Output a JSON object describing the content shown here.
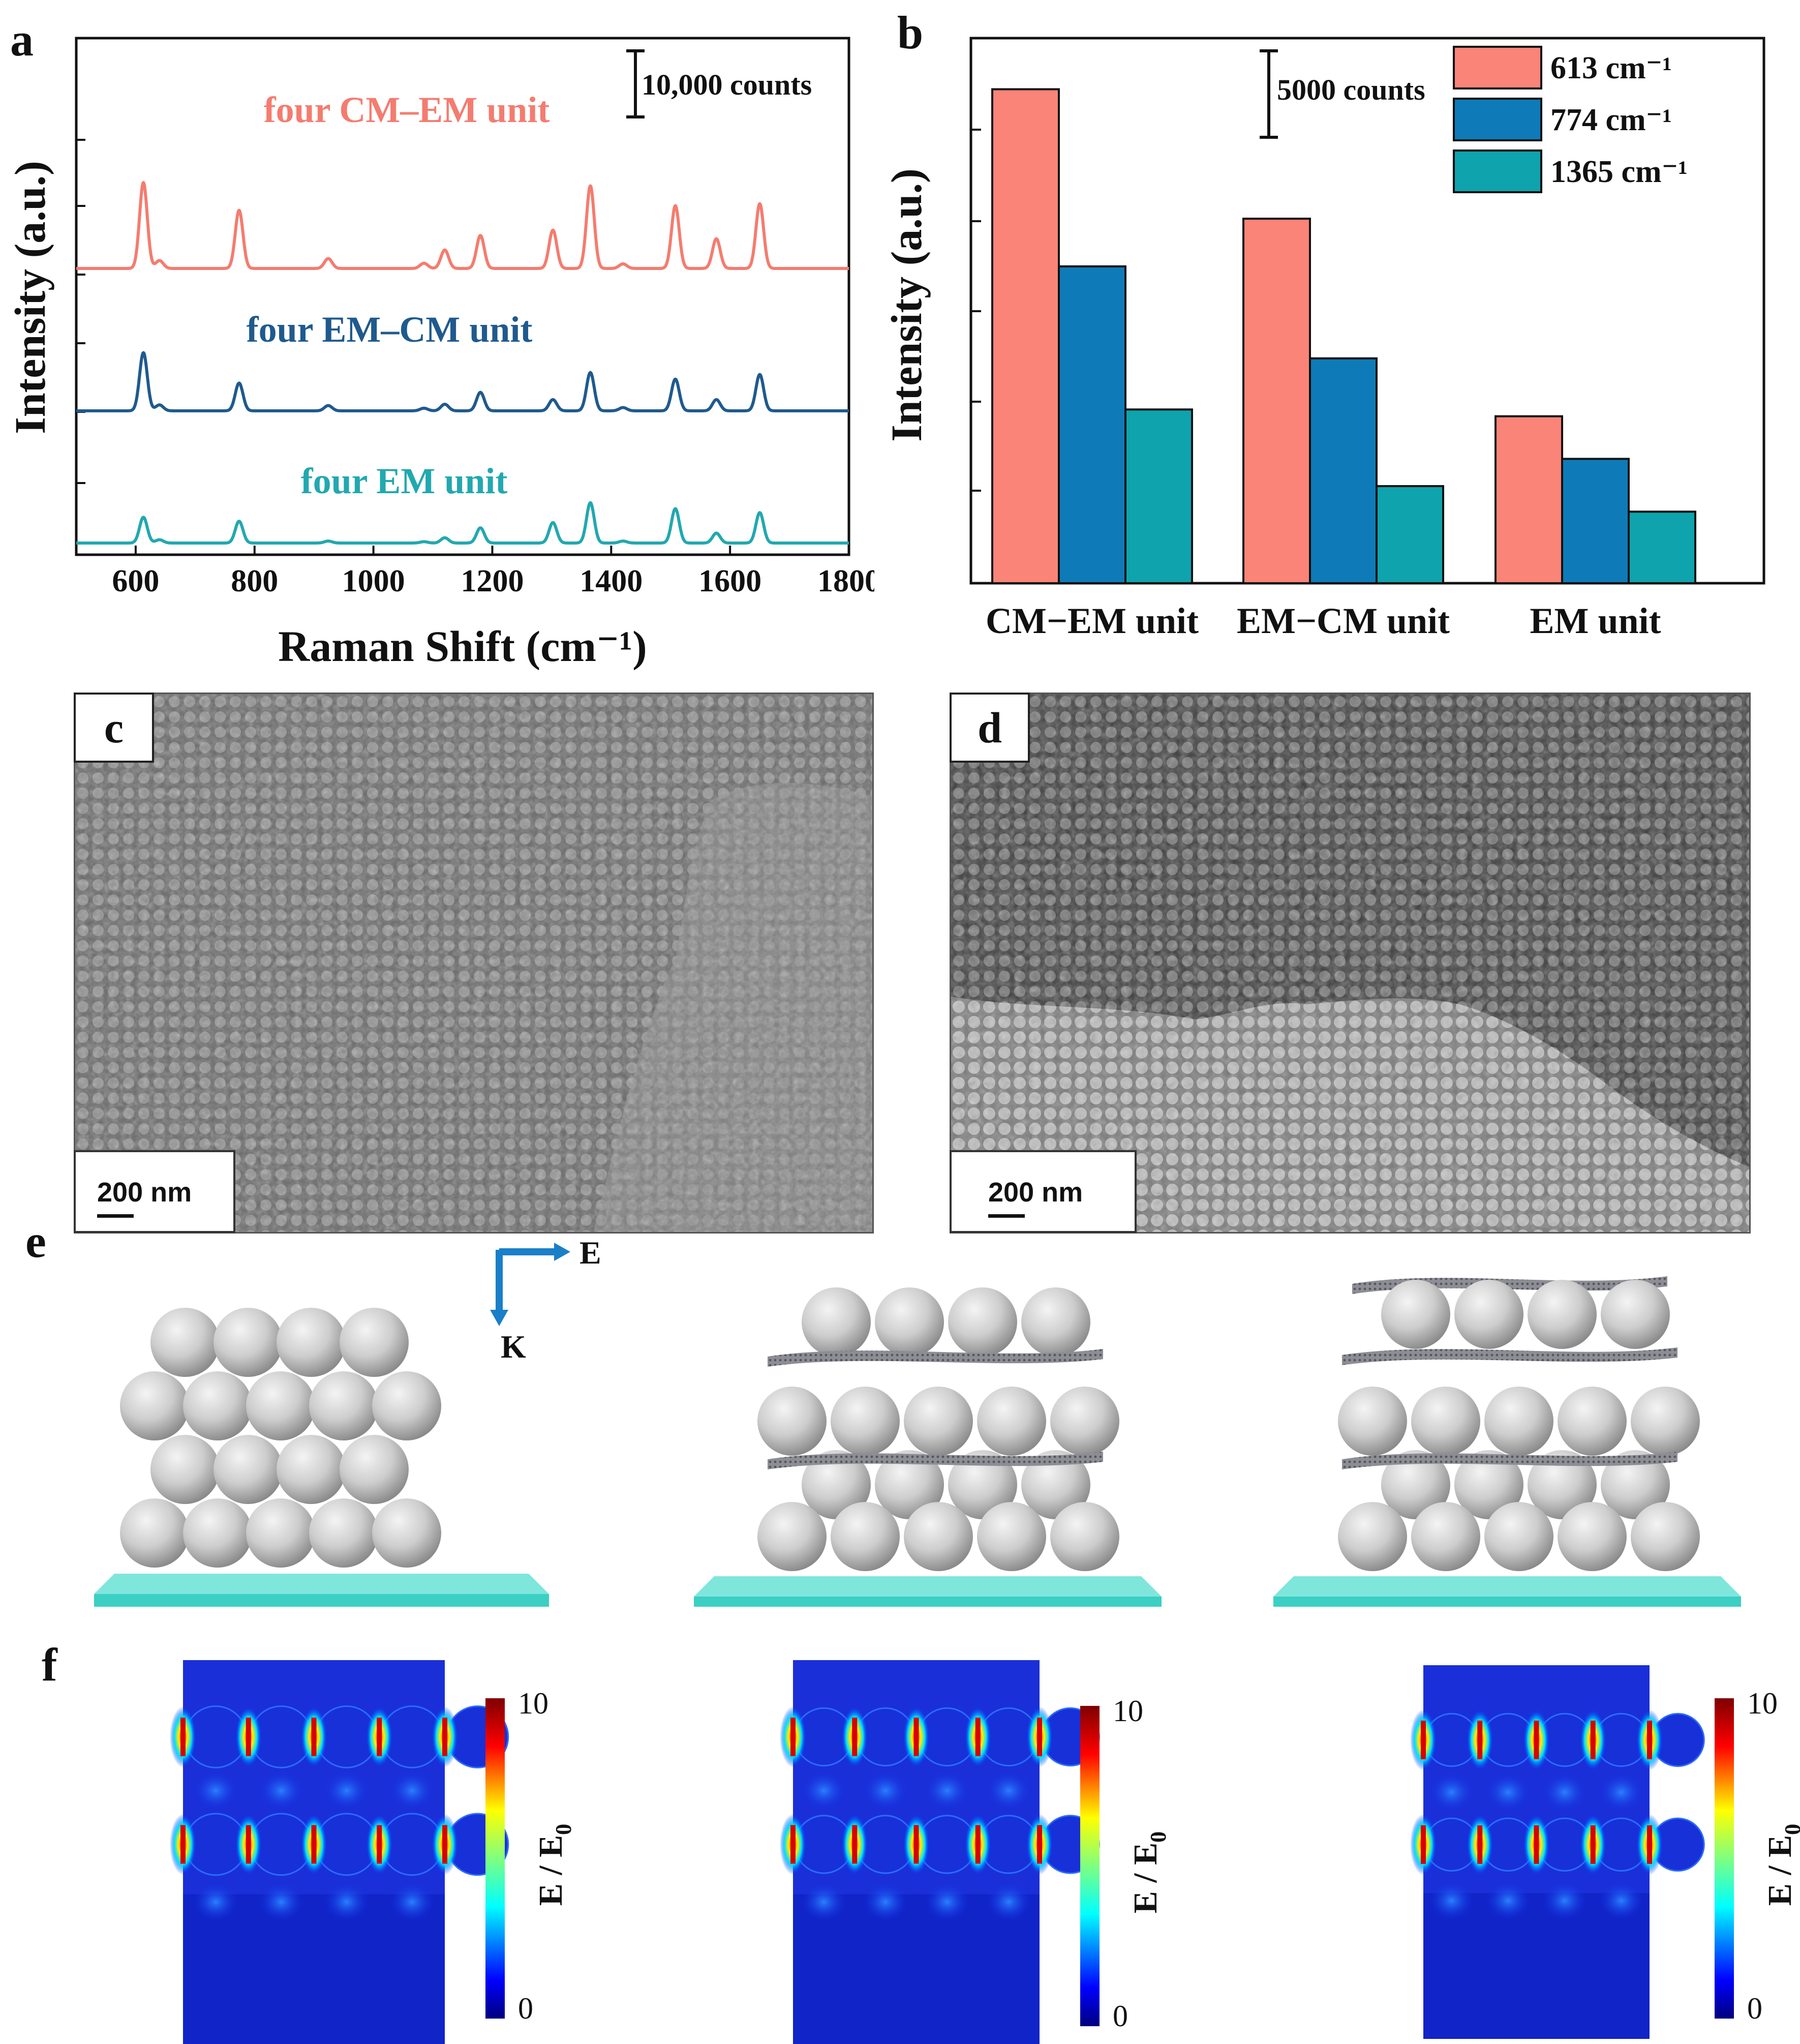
{
  "panels": {
    "a": "a",
    "b": "b",
    "c": "c",
    "d": "d",
    "e": "e",
    "f": "f"
  },
  "chart_data": [
    {
      "type": "line",
      "panel": "a",
      "xlabel": "Raman Shift (cm⁻¹)",
      "ylabel": "Intensity (a.u.)",
      "xlim": [
        500,
        1800
      ],
      "xticks": [
        600,
        800,
        1000,
        1200,
        1400,
        1600,
        1800
      ],
      "scale_bar_label": "10,000 counts",
      "peaks_cm": [
        613,
        640,
        774,
        924,
        1085,
        1120,
        1180,
        1302,
        1365,
        1420,
        1508,
        1577,
        1650
      ],
      "series": [
        {
          "name": "four CM–EM unit",
          "color": "#f47c6f",
          "baseline": 0,
          "peak_heights": [
            13000,
            1200,
            8800,
            1500,
            800,
            2800,
            5000,
            5800,
            12500,
            700,
            9500,
            4500,
            9800
          ]
        },
        {
          "name": "four EM–CM unit",
          "color": "#1f5a8e",
          "baseline": 0,
          "peak_heights": [
            8800,
            900,
            4200,
            800,
            400,
            1000,
            2800,
            1700,
            5800,
            500,
            4800,
            1700,
            5500
          ]
        },
        {
          "name": "four EM unit",
          "color": "#22a8b0",
          "baseline": 0,
          "peak_heights": [
            3900,
            500,
            3300,
            300,
            200,
            800,
            2300,
            3100,
            6100,
            300,
            5200,
            1500,
            4600
          ]
        }
      ],
      "grid": false
    },
    {
      "type": "bar",
      "panel": "b",
      "ylabel": "Intensity (a.u.)",
      "categories": [
        "CM−EM unit",
        "EM−CM unit",
        "EM unit"
      ],
      "scale_bar_label": "5000 counts",
      "series": [
        {
          "name": "613 cm⁻¹",
          "color": "#fa8477",
          "values": [
            29000,
            21400,
            9800
          ]
        },
        {
          "name": "774 cm⁻¹",
          "color": "#0e7bb8",
          "values": [
            18600,
            13200,
            7300
          ]
        },
        {
          "name": "1365 cm⁻¹",
          "color": "#0ea3ad",
          "values": [
            10200,
            5700,
            4200
          ]
        }
      ],
      "ylim": [
        0,
        32000
      ],
      "legend": "top-right",
      "grid": false
    }
  ],
  "sem": {
    "c_scale": "200 nm",
    "d_scale": "200 nm"
  },
  "panel_e": {
    "e_label": "E",
    "k_label": "K",
    "arrow_color": "#1a7fc8",
    "substrate_color": "#3ccfc3"
  },
  "panel_f": {
    "colorbar_max": "10",
    "colorbar_min": "0",
    "colorbar_label": "E / E",
    "colorbar_sub": "0"
  }
}
